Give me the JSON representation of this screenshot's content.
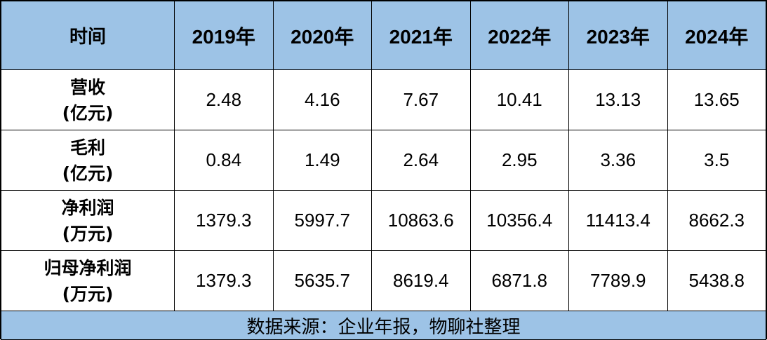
{
  "table": {
    "header": {
      "label": "时间",
      "years": [
        "2019年",
        "2020年",
        "2021年",
        "2022年",
        "2023年",
        "2024年"
      ]
    },
    "rows": [
      {
        "name": "营收",
        "unit": "(亿元)",
        "values": [
          "2.48",
          "4.16",
          "7.67",
          "10.41",
          "13.13",
          "13.65"
        ]
      },
      {
        "name": "毛利",
        "unit": "(亿元)",
        "values": [
          "0.84",
          "1.49",
          "2.64",
          "2.95",
          "3.36",
          "3.5"
        ]
      },
      {
        "name": "净利润",
        "unit": "(万元)",
        "values": [
          "1379.3",
          "5997.7",
          "10863.6",
          "10356.4",
          "11413.4",
          "8662.3"
        ]
      },
      {
        "name": "归母净利润",
        "unit": "(万元)",
        "values": [
          "1379.3",
          "5635.7",
          "8619.4",
          "6871.8",
          "7789.9",
          "5438.8"
        ]
      }
    ],
    "footer": "数据来源：企业年报，物聊社整理"
  },
  "colors": {
    "header_bg": "#9dc3e6",
    "footer_bg": "#9dc3e6",
    "border": "#000000"
  }
}
